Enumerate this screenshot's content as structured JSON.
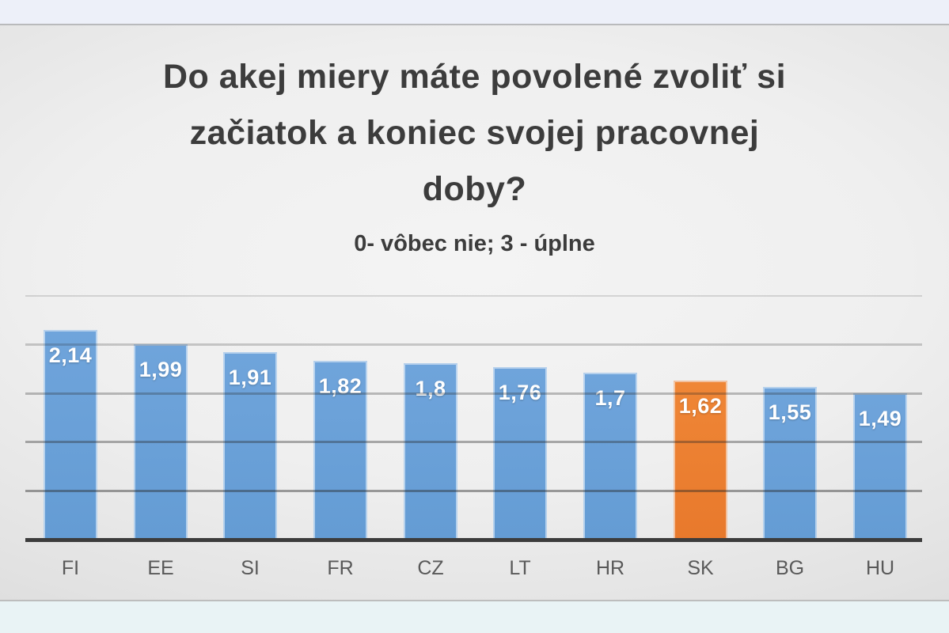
{
  "page": {
    "top_strip_color": "#edf0f9",
    "bottom_strip_color": "#e9f3f5",
    "slide_edge_color": "#bdbdbd"
  },
  "chart_data": {
    "type": "bar",
    "title": "Do akej miery máte povolené zvoliť si začiatok a koniec svojej pracovnej doby?",
    "title_lines": [
      "Do akej miery máte povolené zvoliť si",
      "začiatok a koniec svojej pracovnej",
      "doby?"
    ],
    "subtitle": "0- vôbec nie; 3 - úplne",
    "categories": [
      "FI",
      "EE",
      "SI",
      "FR",
      "CZ",
      "LT",
      "HR",
      "SK",
      "BG",
      "HU"
    ],
    "values": [
      2.14,
      1.99,
      1.91,
      1.82,
      1.8,
      1.76,
      1.7,
      1.62,
      1.55,
      1.49
    ],
    "value_labels": [
      "2,14",
      "1,99",
      "1,91",
      "1,82",
      "1,8",
      "1,76",
      "1,7",
      "1,62",
      "1,55",
      "1,49"
    ],
    "highlight_category": "SK",
    "bar_color": "#649cd4",
    "bar_color_light": "#6fa4db",
    "highlight_color": "#e8792c",
    "highlight_color_light": "#ef8636",
    "ylim": [
      0,
      2.5
    ],
    "gridline_values": [
      0.5,
      1.0,
      1.5,
      2.0,
      2.5
    ],
    "grid": true,
    "legend": false,
    "xlabel": "",
    "ylabel": ""
  }
}
